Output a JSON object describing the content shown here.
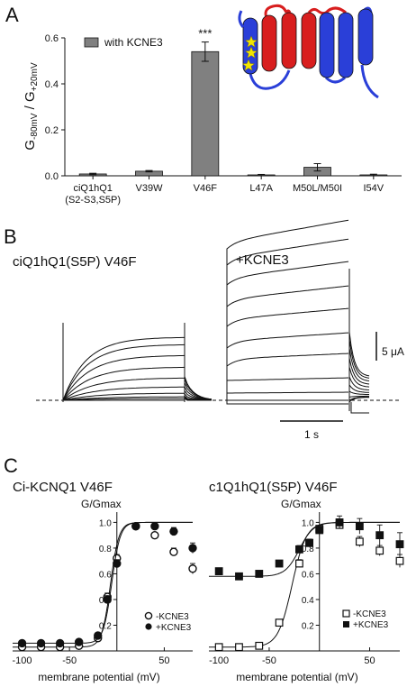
{
  "panel_a": {
    "letter": "A",
    "legend_label": "with KCNE3",
    "significance": "***",
    "ylabel_main": "G",
    "ylabel_sub1": "-80mV",
    "ylabel_mid": " / G",
    "ylabel_sub2": "+20mV"
  },
  "panel_b": {
    "letter": "B",
    "title": "ciQ1hQ1(S5P) V46F",
    "kcne3_label": "+KCNE3",
    "scale_current": "5 μA",
    "scale_time": "1 s"
  },
  "panel_c": {
    "letter": "C",
    "left_title": "Ci-KCNQ1 V46F",
    "right_title": "c1Q1hQ1(S5P) V46F",
    "ylabel": "G/Gmax",
    "xlabel": "membrane potential (mV)",
    "legend_minus": "-KCNE3",
    "legend_plus": "+KCNE3"
  },
  "colors": {
    "bar": "#808080",
    "helix_blue": "#2a3fd8",
    "helix_red": "#d81e1e",
    "star": "#f2e600"
  },
  "icons": {
    "topology": "membrane-topology-icon",
    "star": "star-icon"
  },
  "chart_data": [
    {
      "type": "bar",
      "categories": [
        "ciQ1hQ1\n(S2-S3,S5P)",
        "V39W",
        "V46F",
        "L47A",
        "M50L/M50I",
        "I54V"
      ],
      "category_lines": [
        [
          "ciQ1hQ1",
          "(S2-S3,S5P)"
        ],
        [
          "V39W"
        ],
        [
          "V46F"
        ],
        [
          "L47A"
        ],
        [
          "M50L/M50I"
        ],
        [
          "I54V"
        ]
      ],
      "series": [
        {
          "name": "with KCNE3",
          "values": [
            0.008,
            0.02,
            0.54,
            0.004,
            0.037,
            0.004
          ],
          "errors": [
            0.003,
            0.003,
            0.042,
            0.002,
            0.016,
            0.003
          ]
        }
      ],
      "ylim": [
        0,
        0.6
      ],
      "yticks": [
        0.0,
        0.2,
        0.4,
        0.6
      ],
      "ytick_labels": [
        "0.0",
        "0.2",
        "0.4",
        "0.6"
      ]
    },
    {
      "type": "line",
      "xlim": [
        -110,
        80
      ],
      "ylim": [
        0,
        1.08
      ],
      "xticks": [
        -100,
        -50,
        50
      ],
      "xtick_labels": [
        "-100",
        "-50",
        "50"
      ],
      "yticks": [
        0.2,
        0.4,
        0.6,
        0.8,
        1.0
      ],
      "ytick_labels": [
        "0.2",
        "0.4",
        "0.6",
        "0.8",
        "1.0"
      ],
      "series": [
        {
          "name": "-KCNE3",
          "marker": "circle-open",
          "x": [
            -100,
            -80,
            -60,
            -40,
            -20,
            -10,
            0,
            20,
            40,
            60,
            80
          ],
          "y": [
            0.03,
            0.03,
            0.03,
            0.04,
            0.1,
            0.42,
            0.72,
            0.97,
            0.9,
            0.77,
            0.64
          ],
          "err": [
            0,
            0,
            0,
            0,
            0.02,
            0.03,
            0.03,
            0.02,
            0.02,
            0.03,
            0.04
          ]
        },
        {
          "name": "+KCNE3",
          "marker": "circle-filled",
          "x": [
            -100,
            -80,
            -60,
            -40,
            -20,
            -10,
            0,
            20,
            40,
            60,
            80
          ],
          "y": [
            0.06,
            0.06,
            0.06,
            0.07,
            0.12,
            0.4,
            0.68,
            0.97,
            0.97,
            0.93,
            0.8
          ],
          "err": [
            0,
            0,
            0,
            0,
            0.02,
            0.03,
            0.03,
            0.02,
            0.02,
            0.03,
            0.04
          ]
        }
      ]
    },
    {
      "type": "line",
      "xlim": [
        -110,
        80
      ],
      "ylim": [
        0,
        1.08
      ],
      "xticks": [
        -100,
        -50,
        50
      ],
      "xtick_labels": [
        "-100",
        "-50",
        "50"
      ],
      "yticks": [
        0.2,
        0.4,
        0.6,
        0.8,
        1.0
      ],
      "ytick_labels": [
        "0.2",
        "0.4",
        "0.6",
        "0.8",
        "1.0"
      ],
      "series": [
        {
          "name": "-KCNE3",
          "marker": "square-open",
          "x": [
            -100,
            -80,
            -60,
            -40,
            -20,
            -10,
            0,
            20,
            40,
            60,
            80
          ],
          "y": [
            0.03,
            0.03,
            0.04,
            0.22,
            0.68,
            0.84,
            0.95,
            0.98,
            0.85,
            0.78,
            0.7
          ],
          "err": [
            0,
            0,
            0,
            0.02,
            0.03,
            0.03,
            0.02,
            0.02,
            0.04,
            0.04,
            0.05
          ]
        },
        {
          "name": "+KCNE3",
          "marker": "square-filled",
          "x": [
            -100,
            -80,
            -60,
            -40,
            -20,
            -10,
            0,
            20,
            40,
            60,
            80
          ],
          "y": [
            0.62,
            0.58,
            0.6,
            0.68,
            0.79,
            0.84,
            0.94,
            1.0,
            0.97,
            0.9,
            0.83
          ],
          "err": [
            0,
            0,
            0,
            0.02,
            0.03,
            0.03,
            0.03,
            0.05,
            0.06,
            0.08,
            0.09
          ]
        }
      ]
    }
  ]
}
